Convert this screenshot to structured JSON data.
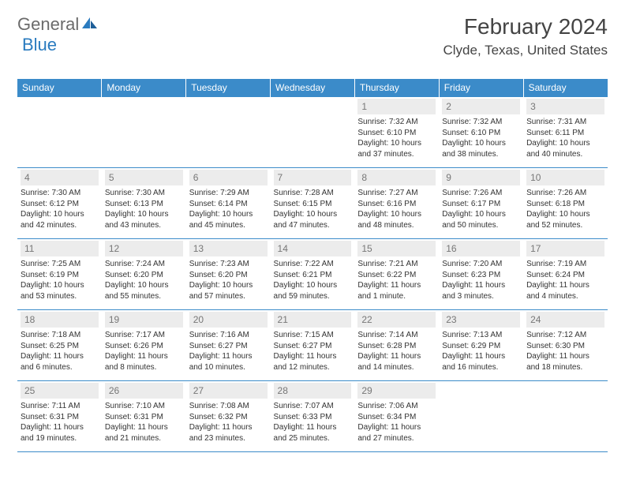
{
  "header": {
    "logo_general": "General",
    "logo_blue": "Blue",
    "month_year": "February 2024",
    "location": "Clyde, Texas, United States"
  },
  "colors": {
    "header_bar": "#3b8bc9",
    "daynum_bg": "#ececec",
    "daynum_text": "#777777",
    "text": "#333333",
    "logo_gray": "#6b6b6b",
    "logo_blue": "#2a7bbf"
  },
  "days_of_week": [
    "Sunday",
    "Monday",
    "Tuesday",
    "Wednesday",
    "Thursday",
    "Friday",
    "Saturday"
  ],
  "weeks": [
    [
      null,
      null,
      null,
      null,
      {
        "day": "1",
        "sunrise": "Sunrise: 7:32 AM",
        "sunset": "Sunset: 6:10 PM",
        "daylight": "Daylight: 10 hours and 37 minutes."
      },
      {
        "day": "2",
        "sunrise": "Sunrise: 7:32 AM",
        "sunset": "Sunset: 6:10 PM",
        "daylight": "Daylight: 10 hours and 38 minutes."
      },
      {
        "day": "3",
        "sunrise": "Sunrise: 7:31 AM",
        "sunset": "Sunset: 6:11 PM",
        "daylight": "Daylight: 10 hours and 40 minutes."
      }
    ],
    [
      {
        "day": "4",
        "sunrise": "Sunrise: 7:30 AM",
        "sunset": "Sunset: 6:12 PM",
        "daylight": "Daylight: 10 hours and 42 minutes."
      },
      {
        "day": "5",
        "sunrise": "Sunrise: 7:30 AM",
        "sunset": "Sunset: 6:13 PM",
        "daylight": "Daylight: 10 hours and 43 minutes."
      },
      {
        "day": "6",
        "sunrise": "Sunrise: 7:29 AM",
        "sunset": "Sunset: 6:14 PM",
        "daylight": "Daylight: 10 hours and 45 minutes."
      },
      {
        "day": "7",
        "sunrise": "Sunrise: 7:28 AM",
        "sunset": "Sunset: 6:15 PM",
        "daylight": "Daylight: 10 hours and 47 minutes."
      },
      {
        "day": "8",
        "sunrise": "Sunrise: 7:27 AM",
        "sunset": "Sunset: 6:16 PM",
        "daylight": "Daylight: 10 hours and 48 minutes."
      },
      {
        "day": "9",
        "sunrise": "Sunrise: 7:26 AM",
        "sunset": "Sunset: 6:17 PM",
        "daylight": "Daylight: 10 hours and 50 minutes."
      },
      {
        "day": "10",
        "sunrise": "Sunrise: 7:26 AM",
        "sunset": "Sunset: 6:18 PM",
        "daylight": "Daylight: 10 hours and 52 minutes."
      }
    ],
    [
      {
        "day": "11",
        "sunrise": "Sunrise: 7:25 AM",
        "sunset": "Sunset: 6:19 PM",
        "daylight": "Daylight: 10 hours and 53 minutes."
      },
      {
        "day": "12",
        "sunrise": "Sunrise: 7:24 AM",
        "sunset": "Sunset: 6:20 PM",
        "daylight": "Daylight: 10 hours and 55 minutes."
      },
      {
        "day": "13",
        "sunrise": "Sunrise: 7:23 AM",
        "sunset": "Sunset: 6:20 PM",
        "daylight": "Daylight: 10 hours and 57 minutes."
      },
      {
        "day": "14",
        "sunrise": "Sunrise: 7:22 AM",
        "sunset": "Sunset: 6:21 PM",
        "daylight": "Daylight: 10 hours and 59 minutes."
      },
      {
        "day": "15",
        "sunrise": "Sunrise: 7:21 AM",
        "sunset": "Sunset: 6:22 PM",
        "daylight": "Daylight: 11 hours and 1 minute."
      },
      {
        "day": "16",
        "sunrise": "Sunrise: 7:20 AM",
        "sunset": "Sunset: 6:23 PM",
        "daylight": "Daylight: 11 hours and 3 minutes."
      },
      {
        "day": "17",
        "sunrise": "Sunrise: 7:19 AM",
        "sunset": "Sunset: 6:24 PM",
        "daylight": "Daylight: 11 hours and 4 minutes."
      }
    ],
    [
      {
        "day": "18",
        "sunrise": "Sunrise: 7:18 AM",
        "sunset": "Sunset: 6:25 PM",
        "daylight": "Daylight: 11 hours and 6 minutes."
      },
      {
        "day": "19",
        "sunrise": "Sunrise: 7:17 AM",
        "sunset": "Sunset: 6:26 PM",
        "daylight": "Daylight: 11 hours and 8 minutes."
      },
      {
        "day": "20",
        "sunrise": "Sunrise: 7:16 AM",
        "sunset": "Sunset: 6:27 PM",
        "daylight": "Daylight: 11 hours and 10 minutes."
      },
      {
        "day": "21",
        "sunrise": "Sunrise: 7:15 AM",
        "sunset": "Sunset: 6:27 PM",
        "daylight": "Daylight: 11 hours and 12 minutes."
      },
      {
        "day": "22",
        "sunrise": "Sunrise: 7:14 AM",
        "sunset": "Sunset: 6:28 PM",
        "daylight": "Daylight: 11 hours and 14 minutes."
      },
      {
        "day": "23",
        "sunrise": "Sunrise: 7:13 AM",
        "sunset": "Sunset: 6:29 PM",
        "daylight": "Daylight: 11 hours and 16 minutes."
      },
      {
        "day": "24",
        "sunrise": "Sunrise: 7:12 AM",
        "sunset": "Sunset: 6:30 PM",
        "daylight": "Daylight: 11 hours and 18 minutes."
      }
    ],
    [
      {
        "day": "25",
        "sunrise": "Sunrise: 7:11 AM",
        "sunset": "Sunset: 6:31 PM",
        "daylight": "Daylight: 11 hours and 19 minutes."
      },
      {
        "day": "26",
        "sunrise": "Sunrise: 7:10 AM",
        "sunset": "Sunset: 6:31 PM",
        "daylight": "Daylight: 11 hours and 21 minutes."
      },
      {
        "day": "27",
        "sunrise": "Sunrise: 7:08 AM",
        "sunset": "Sunset: 6:32 PM",
        "daylight": "Daylight: 11 hours and 23 minutes."
      },
      {
        "day": "28",
        "sunrise": "Sunrise: 7:07 AM",
        "sunset": "Sunset: 6:33 PM",
        "daylight": "Daylight: 11 hours and 25 minutes."
      },
      {
        "day": "29",
        "sunrise": "Sunrise: 7:06 AM",
        "sunset": "Sunset: 6:34 PM",
        "daylight": "Daylight: 11 hours and 27 minutes."
      },
      null,
      null
    ]
  ]
}
